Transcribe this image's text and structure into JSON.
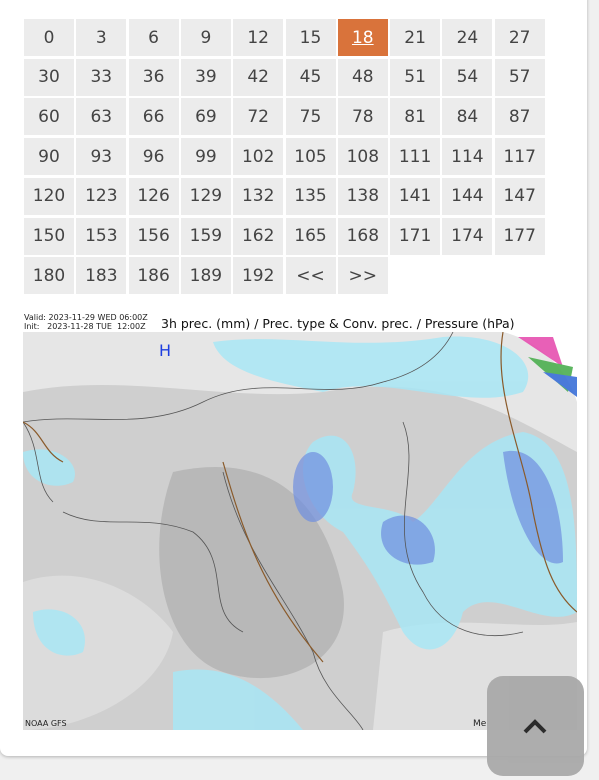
{
  "hour_selector": {
    "buttons": [
      "0",
      "3",
      "6",
      "9",
      "12",
      "15",
      "18",
      "21",
      "24",
      "27",
      "30",
      "33",
      "36",
      "39",
      "42",
      "45",
      "48",
      "51",
      "54",
      "57",
      "60",
      "63",
      "66",
      "69",
      "72",
      "75",
      "78",
      "81",
      "84",
      "87",
      "90",
      "93",
      "96",
      "99",
      "102",
      "105",
      "108",
      "111",
      "114",
      "117",
      "120",
      "123",
      "126",
      "129",
      "132",
      "135",
      "138",
      "141",
      "144",
      "147",
      "150",
      "153",
      "156",
      "159",
      "162",
      "165",
      "168",
      "171",
      "174",
      "177",
      "180",
      "183",
      "186",
      "189",
      "192",
      "<<",
      ">>"
    ],
    "selected_button": 6
  },
  "map": {
    "valid": "Valid: 2023-11-29 WED 06:00Z",
    "init": "Init:   2023-11-28 TUE  12:00Z",
    "title": "3h prec. (mm) / Prec. type & Conv. prec. / Pressure (hPa)",
    "pressure_label": "H",
    "source": "NOAA GFS",
    "cut_text": "Me"
  }
}
